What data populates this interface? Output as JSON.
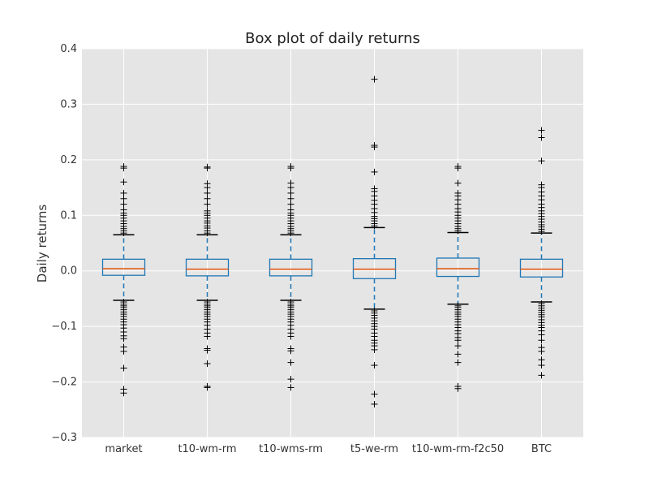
{
  "chart_data": {
    "type": "box",
    "title": "Box plot of daily returns",
    "xlabel": "",
    "ylabel": "Daily returns",
    "ylim": [
      -0.3,
      0.4
    ],
    "yticks": [
      -0.3,
      -0.2,
      -0.1,
      0.0,
      0.1,
      0.2,
      0.3,
      0.4
    ],
    "ytick_labels": [
      "−0.3",
      "−0.2",
      "−0.1",
      "0.0",
      "0.1",
      "0.2",
      "0.3",
      "0.4"
    ],
    "grid": true,
    "series": [
      {
        "name": "market",
        "q1": -0.008,
        "median": 0.004,
        "q3": 0.021,
        "whisker_low": -0.053,
        "whisker_high": 0.065,
        "outliers_high": [
          0.068,
          0.072,
          0.076,
          0.08,
          0.085,
          0.09,
          0.095,
          0.1,
          0.104,
          0.11,
          0.12,
          0.13,
          0.14,
          0.16,
          0.185,
          0.188
        ],
        "outliers_low": [
          -0.056,
          -0.06,
          -0.063,
          -0.066,
          -0.07,
          -0.074,
          -0.078,
          -0.082,
          -0.087,
          -0.092,
          -0.097,
          -0.103,
          -0.11,
          -0.117,
          -0.122,
          -0.137,
          -0.145,
          -0.175,
          -0.213,
          -0.22
        ]
      },
      {
        "name": "t10-wm-rm",
        "q1": -0.009,
        "median": 0.003,
        "q3": 0.021,
        "whisker_low": -0.053,
        "whisker_high": 0.065,
        "outliers_high": [
          0.068,
          0.072,
          0.077,
          0.081,
          0.086,
          0.09,
          0.095,
          0.1,
          0.104,
          0.108,
          0.12,
          0.13,
          0.14,
          0.15,
          0.157,
          0.185,
          0.187
        ],
        "outliers_low": [
          -0.056,
          -0.06,
          -0.063,
          -0.066,
          -0.07,
          -0.074,
          -0.078,
          -0.082,
          -0.087,
          -0.092,
          -0.098,
          -0.105,
          -0.112,
          -0.118,
          -0.14,
          -0.143,
          -0.167,
          -0.208,
          -0.21
        ]
      },
      {
        "name": "t10-wms-rm",
        "q1": -0.009,
        "median": 0.003,
        "q3": 0.021,
        "whisker_low": -0.053,
        "whisker_high": 0.065,
        "outliers_high": [
          0.068,
          0.072,
          0.076,
          0.08,
          0.085,
          0.09,
          0.095,
          0.1,
          0.104,
          0.11,
          0.12,
          0.13,
          0.14,
          0.15,
          0.158,
          0.185,
          0.188
        ],
        "outliers_low": [
          -0.056,
          -0.06,
          -0.063,
          -0.066,
          -0.07,
          -0.074,
          -0.078,
          -0.082,
          -0.087,
          -0.092,
          -0.098,
          -0.105,
          -0.112,
          -0.118,
          -0.14,
          -0.144,
          -0.165,
          -0.195,
          -0.21
        ]
      },
      {
        "name": "t5-we-rm",
        "q1": -0.014,
        "median": 0.003,
        "q3": 0.022,
        "whisker_low": -0.069,
        "whisker_high": 0.078,
        "outliers_high": [
          0.081,
          0.085,
          0.09,
          0.094,
          0.098,
          0.105,
          0.112,
          0.12,
          0.127,
          0.135,
          0.143,
          0.148,
          0.178,
          0.223,
          0.226,
          0.345
        ],
        "outliers_low": [
          -0.072,
          -0.076,
          -0.08,
          -0.085,
          -0.09,
          -0.095,
          -0.1,
          -0.105,
          -0.112,
          -0.118,
          -0.125,
          -0.13,
          -0.135,
          -0.142,
          -0.17,
          -0.222,
          -0.24
        ]
      },
      {
        "name": "t10-wm-rm-f2c50",
        "q1": -0.01,
        "median": 0.004,
        "q3": 0.023,
        "whisker_low": -0.06,
        "whisker_high": 0.069,
        "outliers_high": [
          0.072,
          0.076,
          0.08,
          0.085,
          0.09,
          0.095,
          0.1,
          0.106,
          0.112,
          0.12,
          0.128,
          0.135,
          0.14,
          0.158,
          0.185,
          0.188
        ],
        "outliers_low": [
          -0.063,
          -0.066,
          -0.07,
          -0.074,
          -0.078,
          -0.082,
          -0.087,
          -0.092,
          -0.097,
          -0.102,
          -0.108,
          -0.113,
          -0.12,
          -0.125,
          -0.135,
          -0.15,
          -0.165,
          -0.208,
          -0.212
        ]
      },
      {
        "name": "BTC",
        "q1": -0.011,
        "median": 0.003,
        "q3": 0.021,
        "whisker_low": -0.056,
        "whisker_high": 0.068,
        "outliers_high": [
          0.071,
          0.075,
          0.079,
          0.083,
          0.088,
          0.093,
          0.098,
          0.103,
          0.108,
          0.114,
          0.12,
          0.128,
          0.135,
          0.142,
          0.15,
          0.155,
          0.198,
          0.24,
          0.253
        ],
        "outliers_low": [
          -0.059,
          -0.063,
          -0.067,
          -0.071,
          -0.075,
          -0.079,
          -0.083,
          -0.088,
          -0.093,
          -0.098,
          -0.102,
          -0.108,
          -0.115,
          -0.125,
          -0.138,
          -0.145,
          -0.16,
          -0.17,
          -0.188
        ]
      }
    ],
    "colors": {
      "background": "#e5e5e5",
      "grid": "#ffffff",
      "box": "#1f77b4",
      "median": "#e6550d",
      "outlier": "#000000"
    }
  }
}
